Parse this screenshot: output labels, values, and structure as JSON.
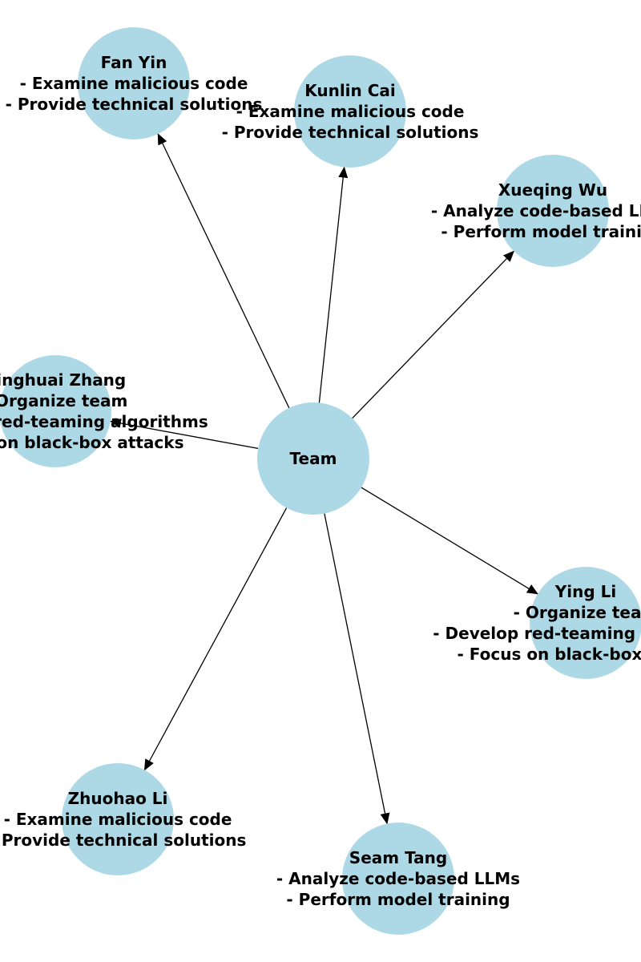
{
  "diagram": {
    "node_color": "#add8e6",
    "edge_color": "#000000",
    "center": {
      "id": "team",
      "lines": [
        "Team"
      ]
    },
    "members": [
      {
        "id": "fan-yin",
        "lines": [
          "Fan Yin",
          "- Examine malicious code",
          "- Provide technical solutions"
        ]
      },
      {
        "id": "kunlin-cai",
        "lines": [
          "Kunlin Cai",
          "- Examine malicious code",
          "- Provide technical solutions"
        ]
      },
      {
        "id": "xueqing-wu",
        "lines": [
          "Xueqing Wu",
          "- Analyze code-based LLMs",
          "- Perform model training"
        ]
      },
      {
        "id": "yinghuai-zhang",
        "lines": [
          "Yinghuai Zhang",
          "- Organize team",
          "- Develop red-teaming algorithms",
          "- Focus on black-box attacks"
        ]
      },
      {
        "id": "ying-li",
        "lines": [
          "Ying Li",
          "- Organize team",
          "- Develop red-teaming algorithms",
          "- Focus on black-box attacks"
        ]
      },
      {
        "id": "zhuohao-li",
        "lines": [
          "Zhuohao Li",
          "- Examine malicious code",
          "- Provide technical solutions"
        ]
      },
      {
        "id": "seam-tang",
        "lines": [
          "Seam Tang",
          "- Analyze code-based LLMs",
          "- Perform model training"
        ]
      }
    ]
  }
}
